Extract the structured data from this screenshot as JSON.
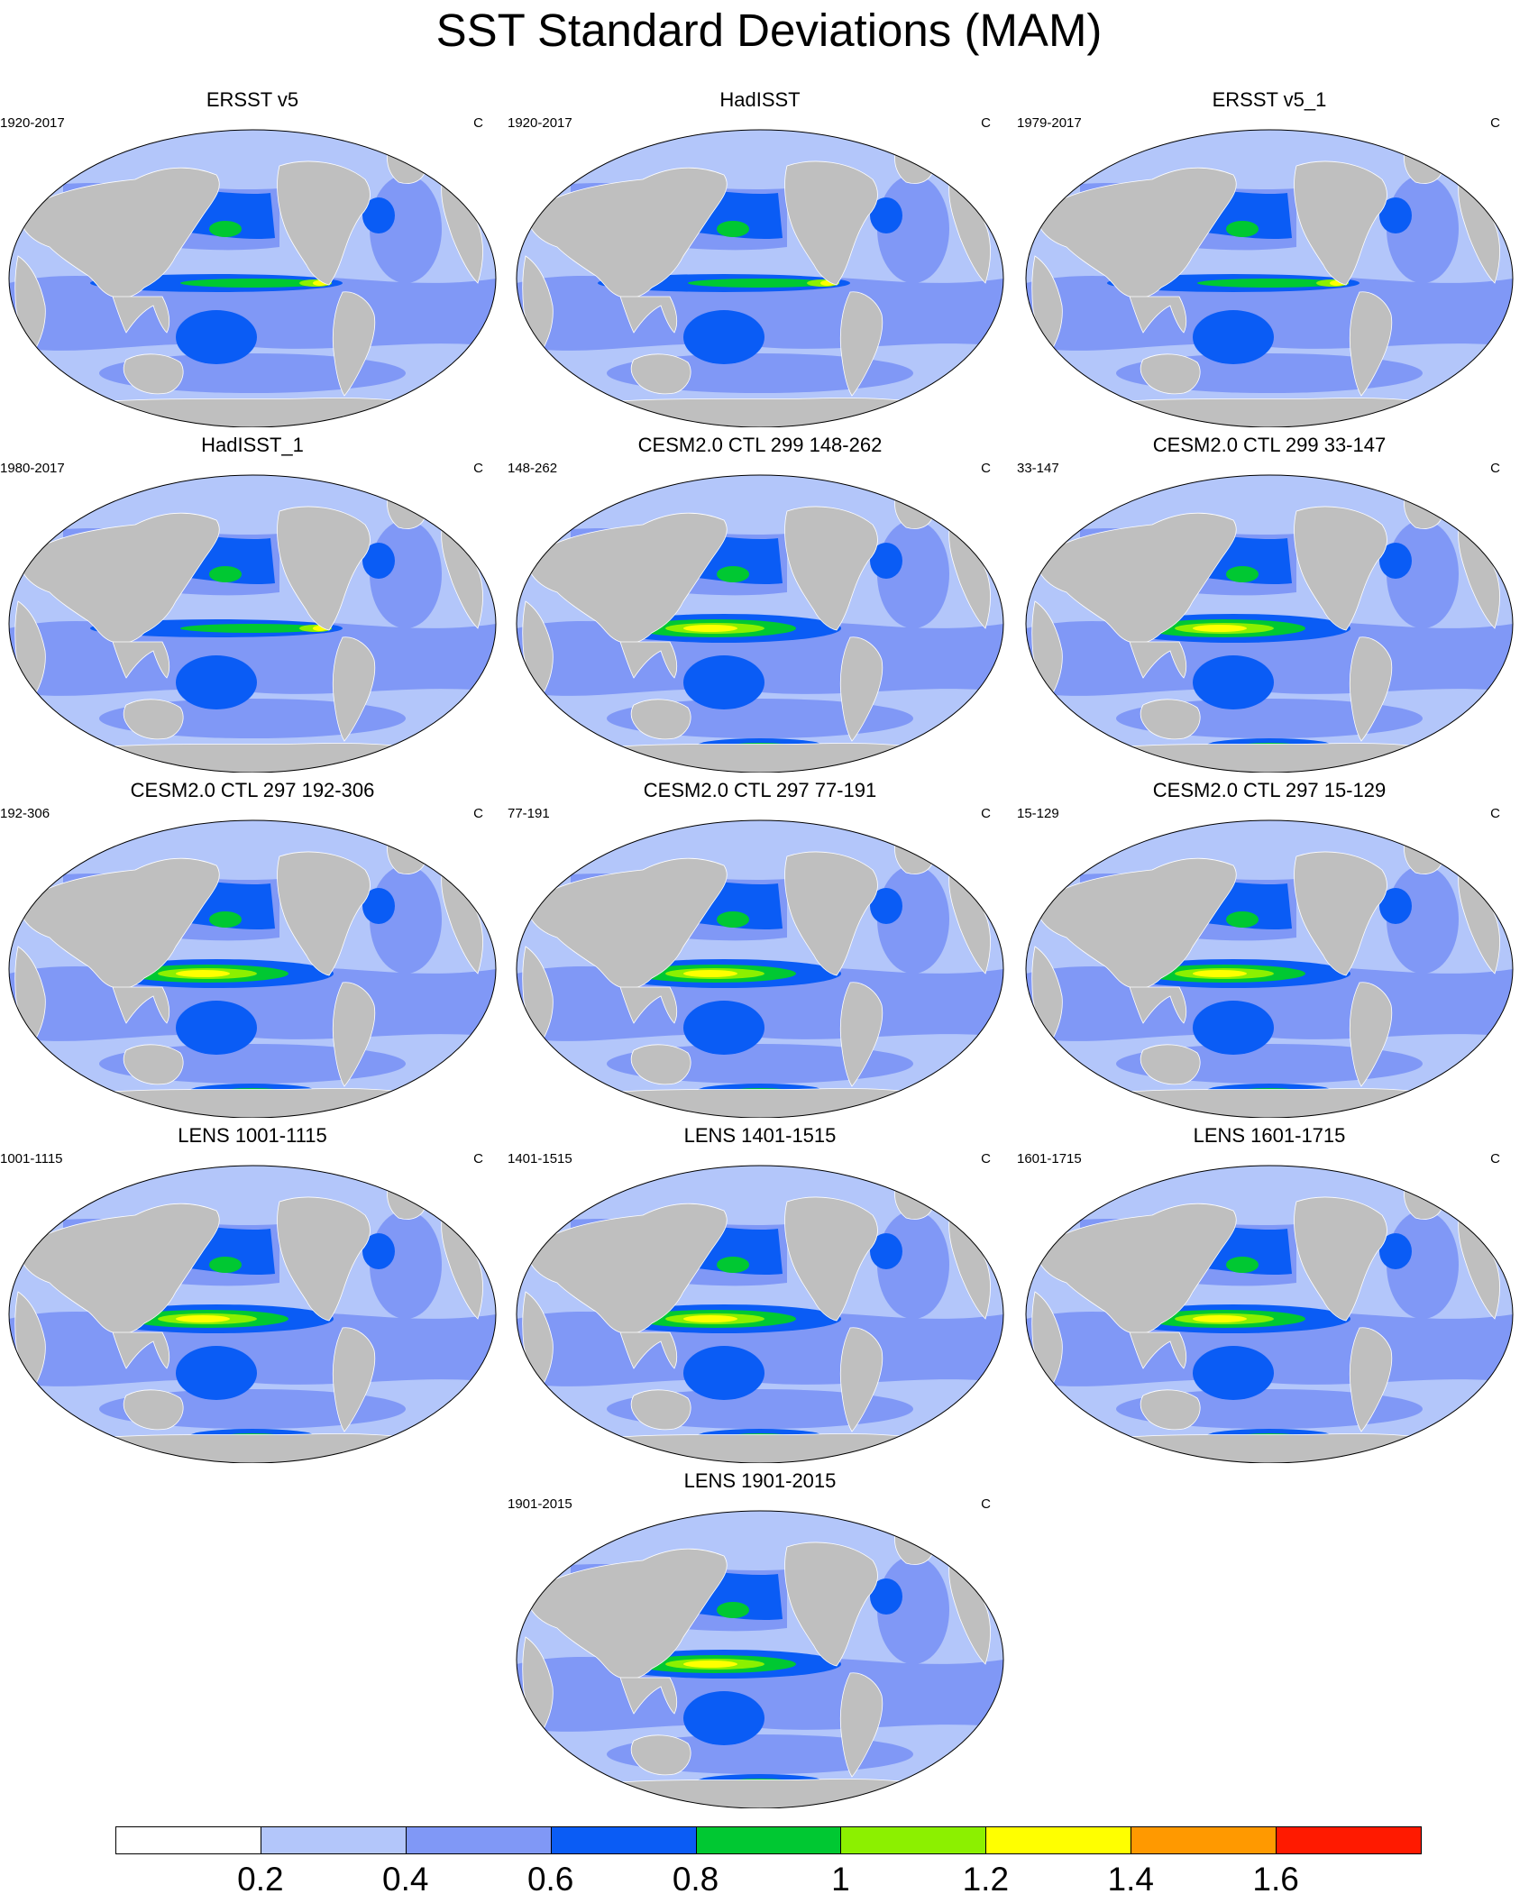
{
  "title": "SST Standard Deviations (MAM)",
  "panels": [
    {
      "title": "ERSST v5",
      "years": "1920-2017",
      "units": "C"
    },
    {
      "title": "HadISST",
      "years": "1920-2017",
      "units": "C"
    },
    {
      "title": "ERSST v5_1",
      "years": "1979-2017",
      "units": "C"
    },
    {
      "title": "HadISST_1",
      "years": "1980-2017",
      "units": "C"
    },
    {
      "title": "CESM2.0 CTL 299 148-262",
      "years": "148-262",
      "units": "C"
    },
    {
      "title": "CESM2.0 CTL 299 33-147",
      "years": "33-147",
      "units": "C"
    },
    {
      "title": "CESM2.0 CTL 297 192-306",
      "years": "192-306",
      "units": "C"
    },
    {
      "title": "CESM2.0 CTL 297 77-191",
      "years": "77-191",
      "units": "C"
    },
    {
      "title": "CESM2.0 CTL 297 15-129",
      "years": "15-129",
      "units": "C"
    },
    {
      "title": "LENS 1001-1115",
      "years": "1001-1115",
      "units": "C"
    },
    {
      "title": "LENS 1401-1515",
      "years": "1401-1515",
      "units": "C"
    },
    {
      "title": "LENS 1601-1715",
      "years": "1601-1715",
      "units": "C"
    },
    {
      "title": "LENS 1901-2015",
      "years": "1901-2015",
      "units": "C"
    }
  ],
  "colorbar": {
    "colors": [
      "#ffffff",
      "#b3c6fa",
      "#8098f6",
      "#0a5cf5",
      "#00c832",
      "#8cf000",
      "#ffff00",
      "#ff9900",
      "#ff1a00"
    ],
    "labels": [
      "0.2",
      "0.4",
      "0.6",
      "0.8",
      "1",
      "1.2",
      "1.4",
      "1.6"
    ]
  },
  "colors": {
    "land": "#bfbfbf",
    "ocean_background": "#b3c6fa"
  }
}
